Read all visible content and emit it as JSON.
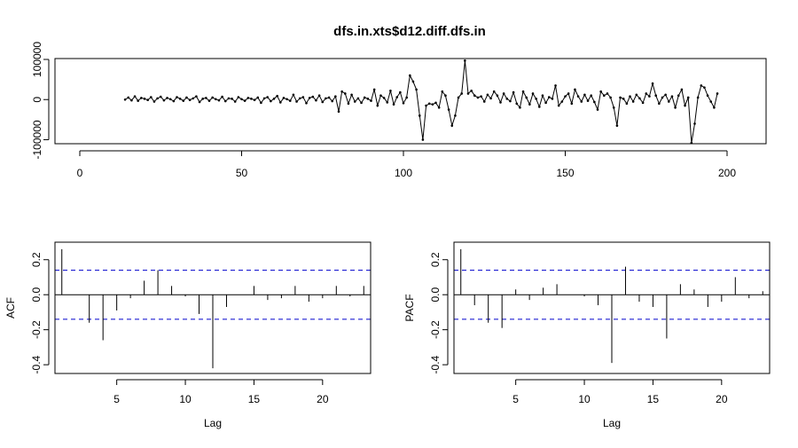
{
  "chart_data": [
    {
      "type": "line",
      "title": "dfs.in.xts$d12.diff.dfs.in",
      "xlabel": "",
      "ylabel": "",
      "xlim": [
        0,
        205
      ],
      "ylim": [
        -110000,
        100000
      ],
      "xticks": [
        0,
        50,
        100,
        150,
        200
      ],
      "yticks": [
        -100000,
        0,
        100000
      ],
      "xtick_labels": [
        "0",
        "50",
        "100",
        "150",
        "200"
      ],
      "ytick_labels": [
        "-100000",
        "0",
        "100000"
      ],
      "x_start": 14,
      "series": [
        {
          "values": [
            0,
            5000,
            -2000,
            8000,
            -3000,
            4000,
            2000,
            -1000,
            6000,
            -5000,
            3000,
            7000,
            -2000,
            4000,
            1000,
            -4000,
            6000,
            2000,
            -3000,
            5000,
            -1000,
            3000,
            8000,
            -6000,
            2000,
            4000,
            -3000,
            5000,
            1000,
            -2000,
            7000,
            -4000,
            3000,
            2000,
            -5000,
            6000,
            1000,
            -3000,
            4000,
            2000,
            -1000,
            5000,
            -8000,
            3000,
            6000,
            -4000,
            2000,
            9000,
            -7000,
            4000,
            1000,
            -3000,
            12000,
            -5000,
            3000,
            6000,
            -9000,
            4000,
            7000,
            -2000,
            10000,
            -6000,
            3000,
            5000,
            -4000,
            8000,
            -30000,
            20000,
            15000,
            -10000,
            12000,
            -5000,
            3000,
            -8000,
            5000,
            2000,
            -3000,
            25000,
            -15000,
            10000,
            4000,
            -7000,
            22000,
            -12000,
            6000,
            18000,
            -9000,
            5000,
            60000,
            45000,
            25000,
            -40000,
            -100000,
            -15000,
            -10000,
            -12000,
            -8000,
            -20000,
            20000,
            10000,
            -25000,
            -65000,
            -40000,
            5000,
            15000,
            97000,
            15000,
            22000,
            10000,
            5000,
            8000,
            -5000,
            12000,
            3000,
            20000,
            10000,
            -7000,
            15000,
            2000,
            -4000,
            18000,
            -10000,
            -20000,
            20000,
            5000,
            -12000,
            15000,
            2000,
            -18000,
            10000,
            -8000,
            6000,
            2000,
            35000,
            -15000,
            -5000,
            8000,
            15000,
            -10000,
            25000,
            8000,
            -5000,
            12000,
            -3000,
            10000,
            -6000,
            -25000,
            20000,
            10000,
            15000,
            5000,
            -20000,
            -65000,
            5000,
            2000,
            -10000,
            8000,
            -5000,
            12000,
            3000,
            -8000,
            15000,
            8000,
            40000,
            10000,
            -10000,
            5000,
            12000,
            -5000,
            8000,
            -20000,
            10000,
            25000,
            -15000,
            5000,
            -108000,
            -60000,
            5000,
            35000,
            30000,
            10000,
            -5000,
            -20000,
            15000
          ]
        }
      ]
    },
    {
      "type": "bar",
      "title": "",
      "xlabel": "Lag",
      "ylabel": "ACF",
      "xlim": [
        0.5,
        23.5
      ],
      "ylim": [
        -0.45,
        0.3
      ],
      "xticks": [
        5,
        10,
        15,
        20
      ],
      "yticks": [
        -0.4,
        -0.2,
        0.0,
        0.2
      ],
      "xtick_labels": [
        "5",
        "10",
        "15",
        "20"
      ],
      "ytick_labels": [
        "-0.4",
        "-0.2",
        "0.0",
        "0.2"
      ],
      "confidence_band": 0.14,
      "x": [
        1,
        2,
        3,
        4,
        5,
        6,
        7,
        8,
        9,
        10,
        11,
        12,
        13,
        14,
        15,
        16,
        17,
        18,
        19,
        20,
        21,
        22,
        23
      ],
      "values": [
        0.26,
        0.0,
        -0.16,
        -0.26,
        -0.09,
        -0.02,
        0.08,
        0.14,
        0.05,
        -0.01,
        -0.11,
        -0.42,
        -0.07,
        0.0,
        0.05,
        -0.03,
        -0.02,
        0.05,
        -0.04,
        -0.02,
        0.05,
        -0.01,
        0.05
      ]
    },
    {
      "type": "bar",
      "title": "",
      "xlabel": "Lag",
      "ylabel": "PACF",
      "xlim": [
        0.5,
        23.5
      ],
      "ylim": [
        -0.45,
        0.3
      ],
      "xticks": [
        5,
        10,
        15,
        20
      ],
      "yticks": [
        -0.4,
        -0.2,
        0.0,
        0.2
      ],
      "xtick_labels": [
        "5",
        "10",
        "15",
        "20"
      ],
      "ytick_labels": [
        "-0.4",
        "-0.2",
        "0.0",
        "0.2"
      ],
      "confidence_band": 0.14,
      "x": [
        1,
        2,
        3,
        4,
        5,
        6,
        7,
        8,
        9,
        10,
        11,
        12,
        13,
        14,
        15,
        16,
        17,
        18,
        19,
        20,
        21,
        22,
        23
      ],
      "values": [
        0.26,
        -0.06,
        -0.16,
        -0.19,
        0.03,
        -0.03,
        0.04,
        0.06,
        0.0,
        -0.01,
        -0.06,
        -0.39,
        0.16,
        -0.04,
        -0.07,
        -0.25,
        0.06,
        0.03,
        -0.07,
        -0.04,
        0.1,
        -0.02,
        0.02
      ]
    }
  ],
  "colors": {
    "line": "#000000",
    "bar": "#000000",
    "confidence_band": "#0000cc",
    "axis": "#000000",
    "background": "#ffffff"
  }
}
